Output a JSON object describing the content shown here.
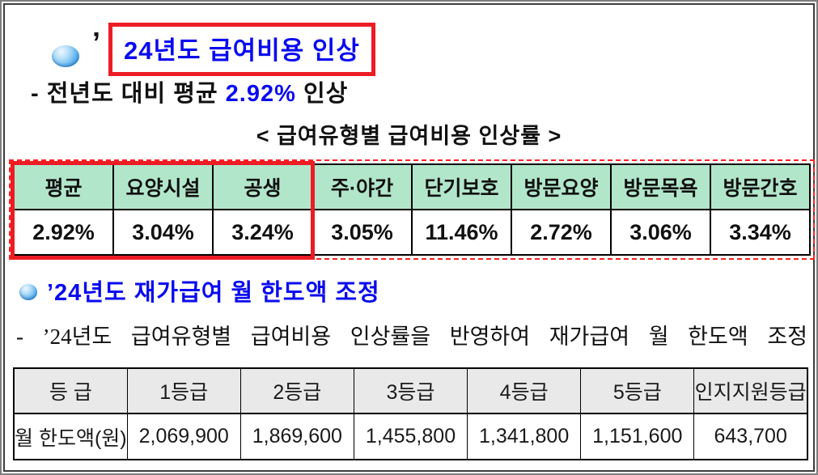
{
  "colors": {
    "accent_blue": "#0a0af0",
    "highlight_red": "#ed1c24",
    "rate_table_header_bg": "#b2e6cb",
    "limit_table_header_bg": "#e9e9e9"
  },
  "icons": {
    "section_bullet": "glossy-blue-sphere"
  },
  "section1": {
    "title_prefix": "’",
    "title": "24년도 급여비용 인상",
    "subtitle_prefix": "- 전년도 대비 평균 ",
    "subtitle_highlight": "2.92%",
    "subtitle_suffix": " 인상",
    "table_caption": "< 급여유형별 급여비용 인상률 >"
  },
  "rate_table": {
    "headers": [
      "평균",
      "요양시설",
      "공생",
      "주·야간",
      "단기보호",
      "방문요양",
      "방문목욕",
      "방문간호"
    ],
    "values": [
      "2.92%",
      "3.04%",
      "3.24%",
      "3.05%",
      "11.46%",
      "2.72%",
      "3.06%",
      "3.34%"
    ],
    "highlighted_columns": [
      "평균",
      "요양시설",
      "공생"
    ]
  },
  "section2": {
    "title": "’24년도 재가급여 월 한도액 조정",
    "subtitle": "- ’24년도 급여유형별 급여비용 인상률을 반영하여 재가급여 월 한도액 조정"
  },
  "limit_table": {
    "headers": [
      "등 급",
      "1등급",
      "2등급",
      "3등급",
      "4등급",
      "5등급",
      "인지지원등급"
    ],
    "row_label": "월 한도액(원)",
    "values": [
      "2,069,900",
      "1,869,600",
      "1,455,800",
      "1,341,800",
      "1,151,600",
      "643,700"
    ]
  }
}
